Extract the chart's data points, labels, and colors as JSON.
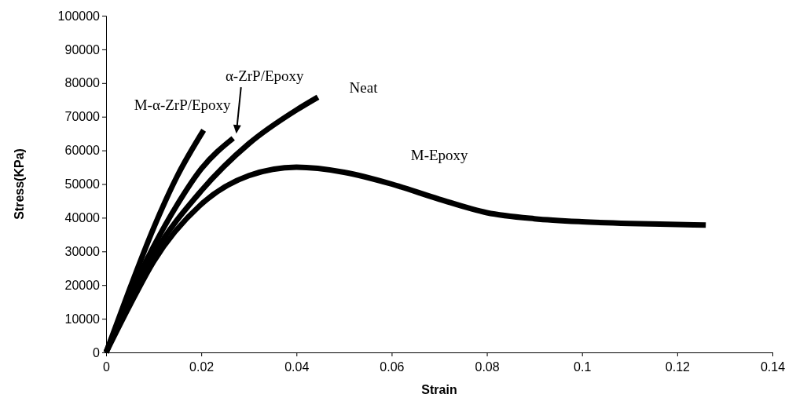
{
  "chart_data": {
    "type": "line",
    "xlabel": "Strain",
    "ylabel": "Stress(KPa)",
    "xlim": [
      0,
      0.14
    ],
    "xticks": [
      0,
      0.02,
      0.04,
      0.06,
      0.08,
      0.1,
      0.12,
      0.14
    ],
    "ylim": [
      0,
      100000
    ],
    "yticks": [
      0,
      10000,
      20000,
      30000,
      40000,
      50000,
      60000,
      70000,
      80000,
      90000,
      100000
    ],
    "grid": false,
    "legend": false,
    "marker": "none",
    "line_style": "solid",
    "series": [
      {
        "name": "M-α-ZrP/Epoxy",
        "color": "#000000",
        "x": [
          0,
          0.005,
          0.01,
          0.015,
          0.0205
        ],
        "values": [
          0,
          19000,
          37000,
          52500,
          66000
        ]
      },
      {
        "color": "#000000",
        "x": [
          0,
          0.005,
          0.01,
          0.015,
          0.02,
          0.0267
        ],
        "values": [
          0,
          17000,
          31500,
          44000,
          54500,
          63600
        ]
      },
      {
        "name": "Neat",
        "color": "#000000",
        "x": [
          0,
          0.005,
          0.01,
          0.02,
          0.03,
          0.04,
          0.0445
        ],
        "values": [
          0,
          15500,
          29000,
          48000,
          62000,
          72000,
          75800
        ]
      },
      {
        "name": "M-Epoxy",
        "color": "#000000",
        "x": [
          0,
          0.005,
          0.01,
          0.02,
          0.03,
          0.04,
          0.05,
          0.06,
          0.07,
          0.08,
          0.09,
          0.1,
          0.11,
          0.12,
          0.126
        ],
        "values": [
          0,
          14000,
          27000,
          44000,
          52500,
          55000,
          53500,
          50000,
          45500,
          41500,
          39700,
          38800,
          38300,
          38000,
          37800
        ]
      }
    ],
    "annotations": [
      "α-ZrP/Epoxy"
    ]
  }
}
